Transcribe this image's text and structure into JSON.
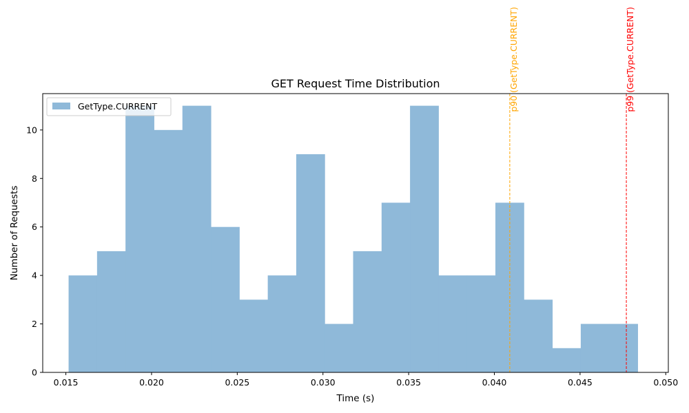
{
  "chart_data": {
    "type": "bar",
    "subtype": "histogram",
    "title": "GET Request Time Distribution",
    "xlabel": "Time (s)",
    "ylabel": "Number of Requests",
    "xlim": [
      0.01365,
      0.05015
    ],
    "ylim": [
      0,
      11.5
    ],
    "x_ticks": [
      "0.015",
      "0.020",
      "0.025",
      "0.030",
      "0.035",
      "0.040",
      "0.045",
      "0.050"
    ],
    "x_tick_values": [
      0.015,
      0.02,
      0.025,
      0.03,
      0.035,
      0.04,
      0.045,
      0.05
    ],
    "y_ticks": [
      "0",
      "2",
      "4",
      "6",
      "8",
      "10"
    ],
    "y_tick_values": [
      0,
      2,
      4,
      6,
      8,
      10
    ],
    "bin_edges": [
      0.01516,
      0.01682,
      0.01848,
      0.02014,
      0.0218,
      0.02346,
      0.02512,
      0.02678,
      0.02844,
      0.0301,
      0.03176,
      0.03342,
      0.03508,
      0.03674,
      0.0384,
      0.04006,
      0.04172,
      0.04338,
      0.04504,
      0.0467,
      0.04836
    ],
    "series": [
      {
        "name": "GetType.CURRENT",
        "color": "#8fb9d9",
        "values": [
          4,
          5,
          11,
          10,
          11,
          6,
          3,
          4,
          9,
          2,
          5,
          7,
          11,
          4,
          4,
          7,
          3,
          1,
          2,
          2
        ]
      }
    ],
    "legend": {
      "position": "upper-left",
      "entries": [
        "GetType.CURRENT"
      ]
    },
    "annotations": [
      {
        "label": "p90 (GetType.CURRENT)",
        "x": 0.0409,
        "color": "#ffa500",
        "style": "dashed"
      },
      {
        "label": "p99 (GetType.CURRENT)",
        "x": 0.0477,
        "color": "#ff0000",
        "style": "dashed"
      }
    ],
    "grid": false
  }
}
